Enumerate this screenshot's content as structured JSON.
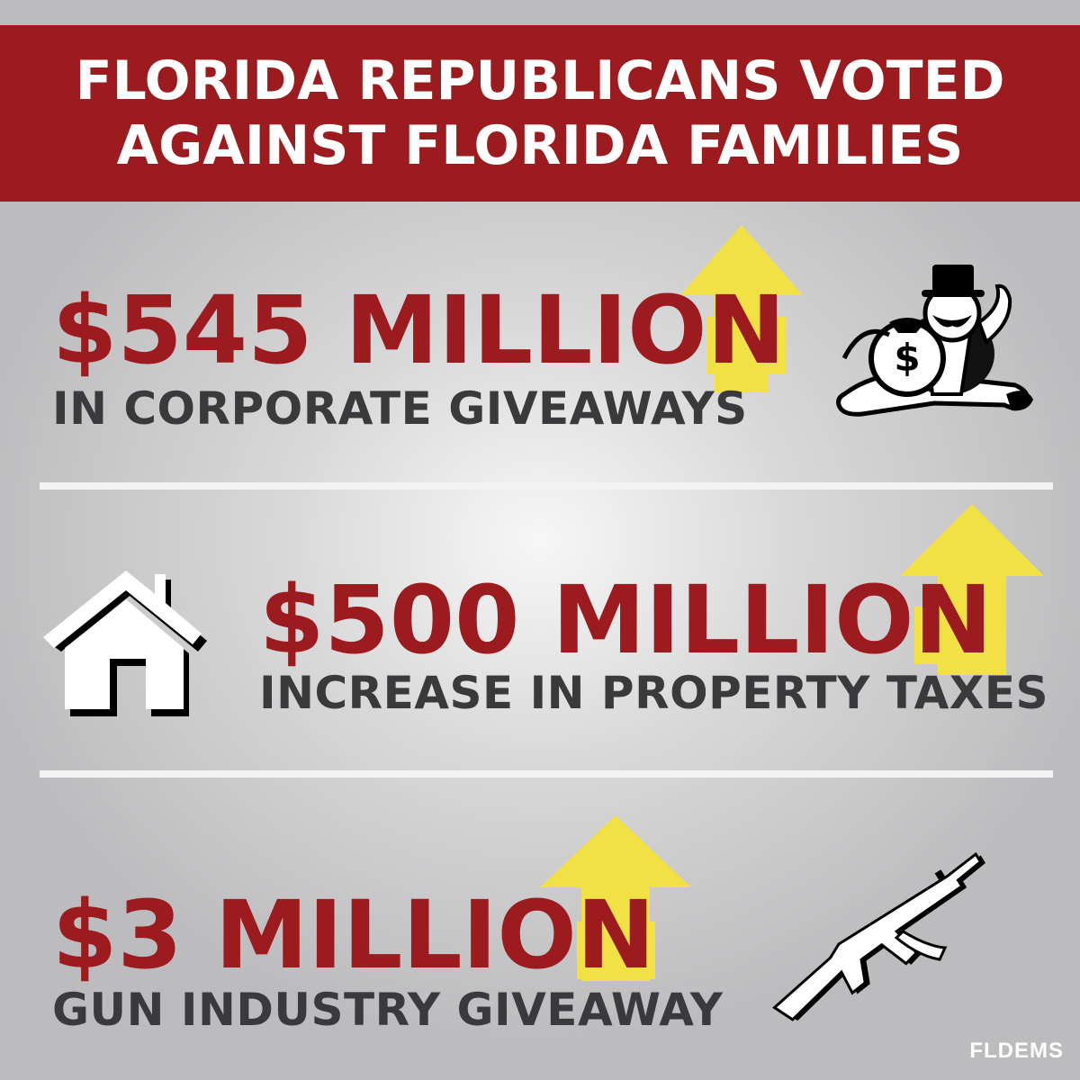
{
  "header": {
    "line1": "FLORIDA REPUBLICANS VOTED",
    "line2": "AGAINST FLORIDA FAMILIES"
  },
  "stats": [
    {
      "amount_main": "$545 MILLIO",
      "amount_last": "N",
      "description": "IN CORPORATE GIVEAWAYS",
      "icon": "monopoly-man-icon"
    },
    {
      "amount_main": "$500 MILLIO",
      "amount_last": "N",
      "description": "INCREASE IN PROPERTY TAXES",
      "icon": "house-icon"
    },
    {
      "amount_main": "$3 MILLIO",
      "amount_last": "N",
      "description": "GUN INDUSTRY GIVEAWAY",
      "icon": "rifle-icon"
    }
  ],
  "logo": {
    "text": "FLDEMS"
  },
  "colors": {
    "header_bg": "#9b1b1f",
    "amount_text": "#9b1b1f",
    "arrow_yellow": "#f1e144",
    "description_text": "#3a3a3c",
    "background": "#c4c4c6"
  }
}
